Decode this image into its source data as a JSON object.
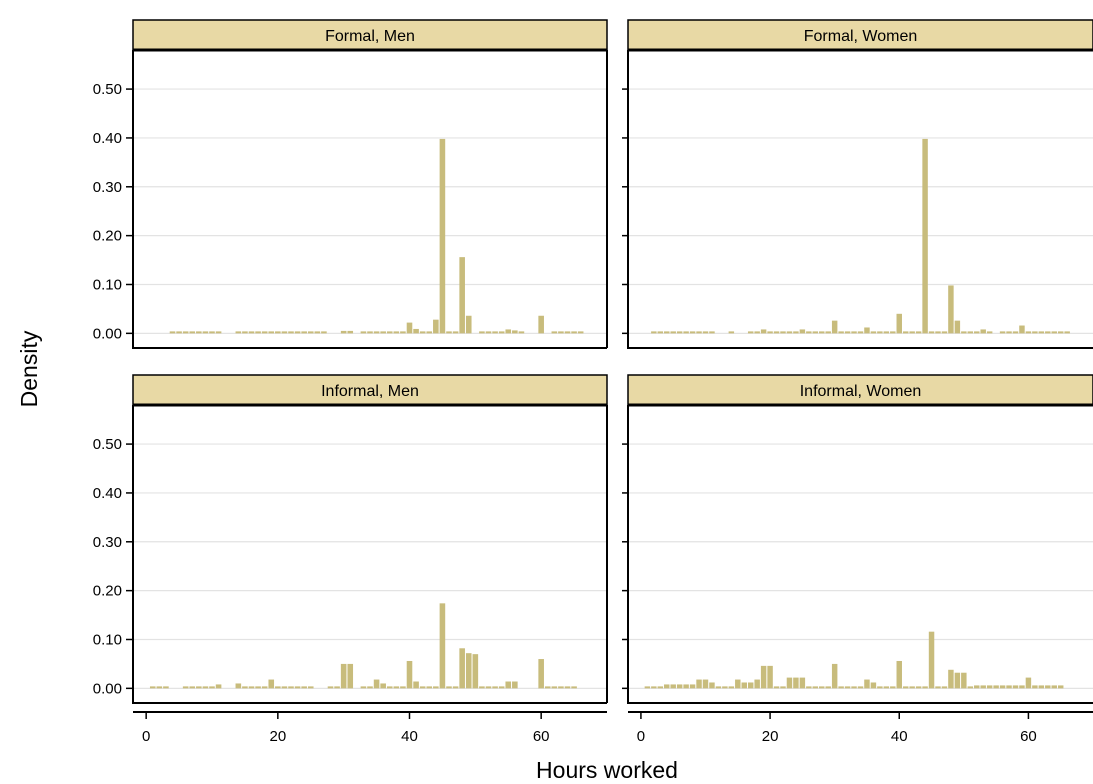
{
  "chart_data": {
    "type": "bar",
    "kind": "histogram",
    "layout": "2x2 facet grid",
    "xlabel": "Hours worked",
    "ylabel": "Density",
    "xlim": [
      -2,
      70
    ],
    "ylim": [
      -0.03,
      0.58
    ],
    "xticks": [
      0,
      20,
      40,
      60
    ],
    "yticks": [
      0.0,
      0.1,
      0.2,
      0.3,
      0.4,
      0.5
    ],
    "ytick_labels": [
      "0.00",
      "0.10",
      "0.20",
      "0.30",
      "0.40",
      "0.50"
    ],
    "grid": "horizontal",
    "bar_color": "#c8bc7c",
    "strip_color": "#e8d9a5",
    "panels": [
      {
        "title": "Formal, Men",
        "bars": [
          {
            "x": 4,
            "y": 0.004
          },
          {
            "x": 5,
            "y": 0.004
          },
          {
            "x": 6,
            "y": 0.004
          },
          {
            "x": 7,
            "y": 0.004
          },
          {
            "x": 8,
            "y": 0.004
          },
          {
            "x": 9,
            "y": 0.004
          },
          {
            "x": 10,
            "y": 0.004
          },
          {
            "x": 11,
            "y": 0.004
          },
          {
            "x": 14,
            "y": 0.004
          },
          {
            "x": 15,
            "y": 0.004
          },
          {
            "x": 16,
            "y": 0.004
          },
          {
            "x": 17,
            "y": 0.004
          },
          {
            "x": 18,
            "y": 0.004
          },
          {
            "x": 19,
            "y": 0.004
          },
          {
            "x": 20,
            "y": 0.004
          },
          {
            "x": 21,
            "y": 0.004
          },
          {
            "x": 22,
            "y": 0.004
          },
          {
            "x": 23,
            "y": 0.004
          },
          {
            "x": 24,
            "y": 0.004
          },
          {
            "x": 25,
            "y": 0.004
          },
          {
            "x": 26,
            "y": 0.004
          },
          {
            "x": 27,
            "y": 0.004
          },
          {
            "x": 30,
            "y": 0.005
          },
          {
            "x": 31,
            "y": 0.005
          },
          {
            "x": 33,
            "y": 0.004
          },
          {
            "x": 34,
            "y": 0.004
          },
          {
            "x": 35,
            "y": 0.004
          },
          {
            "x": 36,
            "y": 0.004
          },
          {
            "x": 37,
            "y": 0.004
          },
          {
            "x": 38,
            "y": 0.004
          },
          {
            "x": 39,
            "y": 0.004
          },
          {
            "x": 40,
            "y": 0.022
          },
          {
            "x": 41,
            "y": 0.009
          },
          {
            "x": 42,
            "y": 0.004
          },
          {
            "x": 43,
            "y": 0.004
          },
          {
            "x": 44,
            "y": 0.028
          },
          {
            "x": 45,
            "y": 0.398
          },
          {
            "x": 46,
            "y": 0.004
          },
          {
            "x": 47,
            "y": 0.004
          },
          {
            "x": 48,
            "y": 0.156
          },
          {
            "x": 49,
            "y": 0.036
          },
          {
            "x": 51,
            "y": 0.004
          },
          {
            "x": 52,
            "y": 0.004
          },
          {
            "x": 53,
            "y": 0.004
          },
          {
            "x": 54,
            "y": 0.004
          },
          {
            "x": 55,
            "y": 0.008
          },
          {
            "x": 56,
            "y": 0.006
          },
          {
            "x": 57,
            "y": 0.004
          },
          {
            "x": 60,
            "y": 0.036
          },
          {
            "x": 62,
            "y": 0.004
          },
          {
            "x": 63,
            "y": 0.004
          },
          {
            "x": 64,
            "y": 0.004
          },
          {
            "x": 65,
            "y": 0.004
          },
          {
            "x": 66,
            "y": 0.004
          }
        ]
      },
      {
        "title": "Formal, Women",
        "bars": [
          {
            "x": 2,
            "y": 0.004
          },
          {
            "x": 3,
            "y": 0.004
          },
          {
            "x": 4,
            "y": 0.004
          },
          {
            "x": 5,
            "y": 0.004
          },
          {
            "x": 6,
            "y": 0.004
          },
          {
            "x": 7,
            "y": 0.004
          },
          {
            "x": 8,
            "y": 0.004
          },
          {
            "x": 9,
            "y": 0.004
          },
          {
            "x": 10,
            "y": 0.004
          },
          {
            "x": 11,
            "y": 0.004
          },
          {
            "x": 14,
            "y": 0.004
          },
          {
            "x": 17,
            "y": 0.004
          },
          {
            "x": 18,
            "y": 0.004
          },
          {
            "x": 19,
            "y": 0.008
          },
          {
            "x": 20,
            "y": 0.004
          },
          {
            "x": 21,
            "y": 0.004
          },
          {
            "x": 22,
            "y": 0.004
          },
          {
            "x": 23,
            "y": 0.004
          },
          {
            "x": 24,
            "y": 0.004
          },
          {
            "x": 25,
            "y": 0.008
          },
          {
            "x": 26,
            "y": 0.004
          },
          {
            "x": 27,
            "y": 0.004
          },
          {
            "x": 28,
            "y": 0.004
          },
          {
            "x": 29,
            "y": 0.004
          },
          {
            "x": 30,
            "y": 0.026
          },
          {
            "x": 31,
            "y": 0.004
          },
          {
            "x": 32,
            "y": 0.004
          },
          {
            "x": 33,
            "y": 0.004
          },
          {
            "x": 34,
            "y": 0.004
          },
          {
            "x": 35,
            "y": 0.012
          },
          {
            "x": 36,
            "y": 0.004
          },
          {
            "x": 37,
            "y": 0.004
          },
          {
            "x": 38,
            "y": 0.004
          },
          {
            "x": 39,
            "y": 0.004
          },
          {
            "x": 40,
            "y": 0.04
          },
          {
            "x": 41,
            "y": 0.004
          },
          {
            "x": 42,
            "y": 0.004
          },
          {
            "x": 43,
            "y": 0.004
          },
          {
            "x": 44,
            "y": 0.398
          },
          {
            "x": 45,
            "y": 0.004
          },
          {
            "x": 46,
            "y": 0.004
          },
          {
            "x": 47,
            "y": 0.004
          },
          {
            "x": 48,
            "y": 0.098
          },
          {
            "x": 49,
            "y": 0.026
          },
          {
            "x": 50,
            "y": 0.004
          },
          {
            "x": 51,
            "y": 0.004
          },
          {
            "x": 52,
            "y": 0.004
          },
          {
            "x": 53,
            "y": 0.008
          },
          {
            "x": 54,
            "y": 0.004
          },
          {
            "x": 56,
            "y": 0.004
          },
          {
            "x": 57,
            "y": 0.004
          },
          {
            "x": 58,
            "y": 0.004
          },
          {
            "x": 59,
            "y": 0.016
          },
          {
            "x": 60,
            "y": 0.004
          },
          {
            "x": 61,
            "y": 0.004
          },
          {
            "x": 62,
            "y": 0.004
          },
          {
            "x": 63,
            "y": 0.004
          },
          {
            "x": 64,
            "y": 0.004
          },
          {
            "x": 65,
            "y": 0.004
          },
          {
            "x": 66,
            "y": 0.004
          }
        ]
      },
      {
        "title": "Informal, Men",
        "bars": [
          {
            "x": 1,
            "y": 0.004
          },
          {
            "x": 2,
            "y": 0.004
          },
          {
            "x": 3,
            "y": 0.004
          },
          {
            "x": 6,
            "y": 0.004
          },
          {
            "x": 7,
            "y": 0.004
          },
          {
            "x": 8,
            "y": 0.004
          },
          {
            "x": 9,
            "y": 0.004
          },
          {
            "x": 10,
            "y": 0.004
          },
          {
            "x": 11,
            "y": 0.008
          },
          {
            "x": 14,
            "y": 0.01
          },
          {
            "x": 15,
            "y": 0.004
          },
          {
            "x": 16,
            "y": 0.004
          },
          {
            "x": 17,
            "y": 0.004
          },
          {
            "x": 18,
            "y": 0.004
          },
          {
            "x": 19,
            "y": 0.018
          },
          {
            "x": 20,
            "y": 0.004
          },
          {
            "x": 21,
            "y": 0.004
          },
          {
            "x": 22,
            "y": 0.004
          },
          {
            "x": 23,
            "y": 0.004
          },
          {
            "x": 24,
            "y": 0.004
          },
          {
            "x": 25,
            "y": 0.004
          },
          {
            "x": 28,
            "y": 0.004
          },
          {
            "x": 29,
            "y": 0.004
          },
          {
            "x": 30,
            "y": 0.05
          },
          {
            "x": 31,
            "y": 0.05
          },
          {
            "x": 33,
            "y": 0.004
          },
          {
            "x": 34,
            "y": 0.004
          },
          {
            "x": 35,
            "y": 0.018
          },
          {
            "x": 36,
            "y": 0.01
          },
          {
            "x": 37,
            "y": 0.004
          },
          {
            "x": 38,
            "y": 0.004
          },
          {
            "x": 39,
            "y": 0.004
          },
          {
            "x": 40,
            "y": 0.056
          },
          {
            "x": 41,
            "y": 0.014
          },
          {
            "x": 42,
            "y": 0.004
          },
          {
            "x": 43,
            "y": 0.004
          },
          {
            "x": 44,
            "y": 0.004
          },
          {
            "x": 45,
            "y": 0.174
          },
          {
            "x": 46,
            "y": 0.004
          },
          {
            "x": 47,
            "y": 0.004
          },
          {
            "x": 48,
            "y": 0.082
          },
          {
            "x": 49,
            "y": 0.072
          },
          {
            "x": 50,
            "y": 0.07
          },
          {
            "x": 51,
            "y": 0.004
          },
          {
            "x": 52,
            "y": 0.004
          },
          {
            "x": 53,
            "y": 0.004
          },
          {
            "x": 54,
            "y": 0.004
          },
          {
            "x": 55,
            "y": 0.014
          },
          {
            "x": 56,
            "y": 0.014
          },
          {
            "x": 60,
            "y": 0.06
          },
          {
            "x": 61,
            "y": 0.004
          },
          {
            "x": 62,
            "y": 0.004
          },
          {
            "x": 63,
            "y": 0.004
          },
          {
            "x": 64,
            "y": 0.004
          },
          {
            "x": 65,
            "y": 0.004
          }
        ]
      },
      {
        "title": "Informal, Women",
        "bars": [
          {
            "x": 1,
            "y": 0.004
          },
          {
            "x": 2,
            "y": 0.004
          },
          {
            "x": 3,
            "y": 0.004
          },
          {
            "x": 4,
            "y": 0.008
          },
          {
            "x": 5,
            "y": 0.008
          },
          {
            "x": 6,
            "y": 0.008
          },
          {
            "x": 7,
            "y": 0.008
          },
          {
            "x": 8,
            "y": 0.008
          },
          {
            "x": 9,
            "y": 0.018
          },
          {
            "x": 10,
            "y": 0.018
          },
          {
            "x": 11,
            "y": 0.012
          },
          {
            "x": 12,
            "y": 0.004
          },
          {
            "x": 13,
            "y": 0.004
          },
          {
            "x": 14,
            "y": 0.004
          },
          {
            "x": 15,
            "y": 0.018
          },
          {
            "x": 16,
            "y": 0.012
          },
          {
            "x": 17,
            "y": 0.012
          },
          {
            "x": 18,
            "y": 0.018
          },
          {
            "x": 19,
            "y": 0.046
          },
          {
            "x": 20,
            "y": 0.046
          },
          {
            "x": 21,
            "y": 0.004
          },
          {
            "x": 22,
            "y": 0.004
          },
          {
            "x": 23,
            "y": 0.022
          },
          {
            "x": 24,
            "y": 0.022
          },
          {
            "x": 25,
            "y": 0.022
          },
          {
            "x": 26,
            "y": 0.004
          },
          {
            "x": 27,
            "y": 0.004
          },
          {
            "x": 28,
            "y": 0.004
          },
          {
            "x": 29,
            "y": 0.004
          },
          {
            "x": 30,
            "y": 0.05
          },
          {
            "x": 31,
            "y": 0.004
          },
          {
            "x": 32,
            "y": 0.004
          },
          {
            "x": 33,
            "y": 0.004
          },
          {
            "x": 34,
            "y": 0.004
          },
          {
            "x": 35,
            "y": 0.018
          },
          {
            "x": 36,
            "y": 0.012
          },
          {
            "x": 37,
            "y": 0.004
          },
          {
            "x": 38,
            "y": 0.004
          },
          {
            "x": 39,
            "y": 0.004
          },
          {
            "x": 40,
            "y": 0.056
          },
          {
            "x": 41,
            "y": 0.004
          },
          {
            "x": 42,
            "y": 0.004
          },
          {
            "x": 43,
            "y": 0.004
          },
          {
            "x": 44,
            "y": 0.004
          },
          {
            "x": 45,
            "y": 0.116
          },
          {
            "x": 46,
            "y": 0.004
          },
          {
            "x": 47,
            "y": 0.004
          },
          {
            "x": 48,
            "y": 0.038
          },
          {
            "x": 49,
            "y": 0.032
          },
          {
            "x": 50,
            "y": 0.032
          },
          {
            "x": 51,
            "y": 0.004
          },
          {
            "x": 52,
            "y": 0.006
          },
          {
            "x": 53,
            "y": 0.006
          },
          {
            "x": 54,
            "y": 0.006
          },
          {
            "x": 55,
            "y": 0.006
          },
          {
            "x": 56,
            "y": 0.006
          },
          {
            "x": 57,
            "y": 0.006
          },
          {
            "x": 58,
            "y": 0.006
          },
          {
            "x": 59,
            "y": 0.006
          },
          {
            "x": 60,
            "y": 0.022
          },
          {
            "x": 61,
            "y": 0.006
          },
          {
            "x": 62,
            "y": 0.006
          },
          {
            "x": 63,
            "y": 0.006
          },
          {
            "x": 64,
            "y": 0.006
          },
          {
            "x": 65,
            "y": 0.006
          }
        ]
      }
    ]
  }
}
